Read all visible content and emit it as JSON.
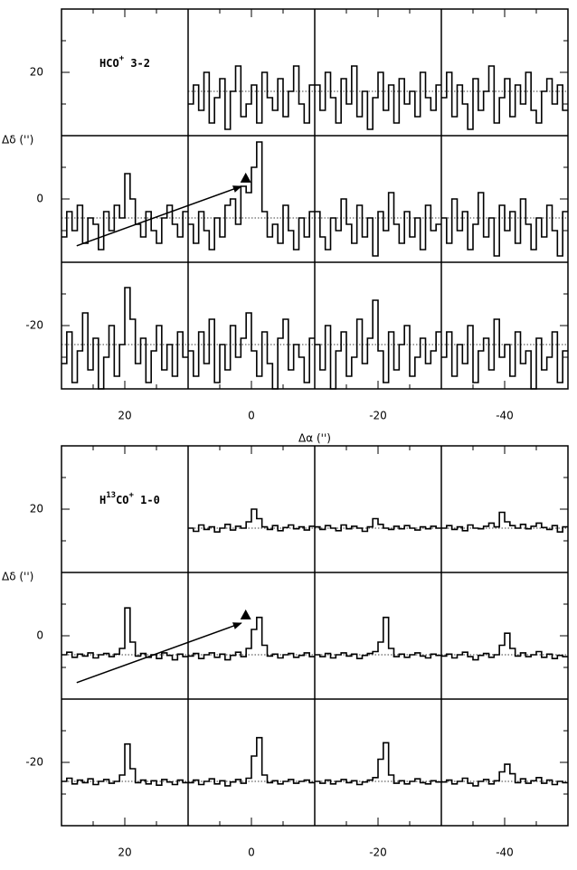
{
  "chart_data": [
    {
      "type": "spectral-map",
      "x_label": "Δα ('')",
      "y_label": "Δδ ('')",
      "label_parts": [
        {
          "text": "HCO"
        },
        {
          "text": "+",
          "sup": true
        },
        {
          "text": " 3-2"
        }
      ],
      "xlim": [
        30,
        -50
      ],
      "ylim": [
        -30,
        30
      ],
      "xticks": [
        20,
        0,
        -20,
        -40
      ],
      "yticks": [
        20,
        0,
        -20
      ],
      "xminor": [
        25,
        15,
        5,
        -5,
        -15,
        -25,
        -35,
        -45
      ],
      "yminor": [
        25,
        15,
        5,
        -5,
        -15,
        -25
      ],
      "xgrid": [
        10,
        -10,
        -30
      ],
      "ygrid": [
        10,
        -10
      ],
      "arrow": {
        "from": [
          27.6,
          -7.4
        ],
        "to": [
          1.6,
          2
        ]
      },
      "marker": [
        0.9,
        3.3
      ],
      "series": [
        {
          "position": [
            0,
            20
          ],
          "baseline": 17,
          "values": [
            15,
            18,
            14,
            20,
            12,
            16,
            19,
            11,
            17,
            21,
            13,
            15,
            18,
            12,
            20,
            16,
            14,
            19,
            13,
            17,
            21,
            15,
            12,
            18
          ]
        },
        {
          "position": [
            -20,
            20
          ],
          "baseline": 17,
          "values": [
            18,
            14,
            20,
            16,
            12,
            19,
            15,
            21,
            13,
            17,
            11,
            16,
            20,
            14,
            18,
            12,
            19,
            15,
            17,
            13,
            20,
            16,
            14,
            18
          ]
        },
        {
          "position": [
            -40,
            20
          ],
          "baseline": 17,
          "values": [
            16,
            20,
            13,
            18,
            15,
            11,
            19,
            14,
            17,
            21,
            12,
            16,
            19,
            13,
            18,
            15,
            20,
            14,
            12,
            17,
            19,
            15,
            18,
            14
          ]
        },
        {
          "position": [
            20,
            0
          ],
          "baseline": -3,
          "values": [
            -6,
            -2,
            -5,
            -1,
            -7,
            -3,
            -4,
            -8,
            -2,
            -5,
            -1,
            -3,
            4,
            0,
            -4,
            -6,
            -2,
            -5,
            -7,
            -3,
            -1,
            -4,
            -6,
            -2
          ]
        },
        {
          "position": [
            0,
            0
          ],
          "baseline": -3,
          "values": [
            -4,
            -7,
            -2,
            -5,
            -8,
            -3,
            -6,
            -1,
            0,
            -4,
            2,
            1,
            5,
            9,
            -2,
            -6,
            -4,
            -7,
            -1,
            -5,
            -8,
            -3,
            -6,
            -2
          ]
        },
        {
          "position": [
            -20,
            0
          ],
          "baseline": -3,
          "values": [
            -2,
            -6,
            -8,
            -3,
            -5,
            0,
            -4,
            -7,
            -1,
            -6,
            -3,
            -9,
            -2,
            -5,
            1,
            -4,
            -7,
            -2,
            -6,
            -3,
            -8,
            -1,
            -5,
            -4
          ]
        },
        {
          "position": [
            -40,
            0
          ],
          "baseline": -3,
          "values": [
            -3,
            -7,
            0,
            -5,
            -2,
            -8,
            -4,
            1,
            -6,
            -3,
            -9,
            -1,
            -5,
            -2,
            -7,
            0,
            -4,
            -8,
            -3,
            -6,
            -1,
            -5,
            -9,
            -2
          ]
        },
        {
          "position": [
            20,
            -20
          ],
          "baseline": -23,
          "values": [
            -26,
            -21,
            -29,
            -24,
            -18,
            -27,
            -22,
            -30,
            -25,
            -20,
            -28,
            -23,
            -14,
            -19,
            -26,
            -22,
            -29,
            -24,
            -20,
            -27,
            -23,
            -28,
            -21,
            -25
          ]
        },
        {
          "position": [
            0,
            -20
          ],
          "baseline": -23,
          "values": [
            -24,
            -28,
            -21,
            -26,
            -19,
            -29,
            -23,
            -27,
            -20,
            -25,
            -22,
            -18,
            -24,
            -28,
            -21,
            -26,
            -30,
            -22,
            -19,
            -27,
            -23,
            -25,
            -29,
            -22
          ]
        },
        {
          "position": [
            -20,
            -20
          ],
          "baseline": -23,
          "values": [
            -23,
            -27,
            -20,
            -30,
            -24,
            -21,
            -28,
            -25,
            -19,
            -26,
            -22,
            -16,
            -24,
            -29,
            -21,
            -27,
            -23,
            -20,
            -28,
            -25,
            -22,
            -26,
            -24,
            -21
          ]
        },
        {
          "position": [
            -40,
            -20
          ],
          "baseline": -23,
          "values": [
            -25,
            -21,
            -28,
            -23,
            -26,
            -20,
            -29,
            -24,
            -22,
            -27,
            -19,
            -25,
            -23,
            -28,
            -21,
            -26,
            -24,
            -30,
            -22,
            -27,
            -25,
            -21,
            -29,
            -24
          ]
        }
      ]
    },
    {
      "type": "spectral-map",
      "x_label": "Δα ('')",
      "y_label": "Δδ ('')",
      "label_parts": [
        {
          "text": "H"
        },
        {
          "text": "13",
          "sup": true
        },
        {
          "text": "CO"
        },
        {
          "text": "+",
          "sup": true
        },
        {
          "text": " 1-0"
        }
      ],
      "xlim": [
        30,
        -50
      ],
      "ylim": [
        -30,
        30
      ],
      "xticks": [
        20,
        0,
        -20,
        -40
      ],
      "yticks": [
        20,
        0,
        -20
      ],
      "xminor": [
        25,
        15,
        5,
        -5,
        -15,
        -25,
        -35,
        -45
      ],
      "yminor": [
        25,
        15,
        5,
        -5,
        -15,
        -25
      ],
      "xgrid": [
        10,
        -10,
        -30
      ],
      "ygrid": [
        10,
        -10
      ],
      "arrow": {
        "from": [
          27.6,
          -7.4
        ],
        "to": [
          1.6,
          2
        ]
      },
      "marker": [
        0.9,
        3.3
      ],
      "series": [
        {
          "position": [
            0,
            20
          ],
          "baseline": 17,
          "values": [
            17,
            16.5,
            17.5,
            16.8,
            17.2,
            16.4,
            17,
            17.6,
            16.7,
            17.3,
            17,
            18,
            20,
            18.5,
            17.2,
            16.8,
            17.4,
            16.6,
            17.1,
            17.5,
            16.9,
            17.2,
            16.7,
            17.3
          ]
        },
        {
          "position": [
            -20,
            20
          ],
          "baseline": 17,
          "values": [
            17.2,
            16.8,
            17.4,
            17,
            16.6,
            17.5,
            16.9,
            17.3,
            17,
            16.5,
            17.2,
            18.5,
            17.6,
            17,
            16.8,
            17.3,
            16.9,
            17.4,
            17,
            16.7,
            17.2,
            16.9,
            17.3,
            17
          ]
        },
        {
          "position": [
            -40,
            20
          ],
          "baseline": 17,
          "values": [
            17,
            17.4,
            16.8,
            17.2,
            16.6,
            17.5,
            17,
            16.9,
            17.3,
            17.8,
            17.2,
            19.5,
            18,
            17.4,
            17,
            17.6,
            16.9,
            17.3,
            17.8,
            17.1,
            16.8,
            17.4,
            16.4,
            17.2
          ]
        },
        {
          "position": [
            20,
            0
          ],
          "baseline": -3,
          "values": [
            -3,
            -2.6,
            -3.4,
            -2.9,
            -3.2,
            -2.7,
            -3.5,
            -3,
            -2.8,
            -3.3,
            -2.9,
            -2,
            4.4,
            -1,
            -3.2,
            -2.8,
            -3.4,
            -3,
            -3.6,
            -2.7,
            -3.1,
            -3.8,
            -2.9,
            -3.3
          ]
        },
        {
          "position": [
            0,
            0
          ],
          "baseline": -3,
          "values": [
            -3.2,
            -2.8,
            -3.6,
            -3,
            -2.7,
            -3.4,
            -2.9,
            -3.8,
            -3.1,
            -2.6,
            -3.3,
            -2,
            1,
            2.9,
            -1.5,
            -3.2,
            -2.9,
            -3.5,
            -3,
            -2.8,
            -3.4,
            -3.1,
            -2.7,
            -3.3
          ]
        },
        {
          "position": [
            -20,
            0
          ],
          "baseline": -3,
          "values": [
            -3,
            -3.3,
            -2.8,
            -3.5,
            -3,
            -2.7,
            -3.2,
            -2.9,
            -3.6,
            -3.1,
            -2.8,
            -2.5,
            -1,
            2.9,
            -2,
            -3.3,
            -2.9,
            -3.4,
            -3,
            -2.7,
            -3.2,
            -3.5,
            -2.9,
            -3.1
          ]
        },
        {
          "position": [
            -40,
            0
          ],
          "baseline": -3,
          "values": [
            -3.2,
            -2.9,
            -3.5,
            -3,
            -2.6,
            -3.3,
            -3.8,
            -3.1,
            -2.8,
            -3.4,
            -3,
            -1.5,
            0.4,
            -2,
            -3.2,
            -2.7,
            -3.3,
            -3,
            -2.5,
            -3.4,
            -2.9,
            -3.6,
            -3.1,
            -3.3
          ]
        },
        {
          "position": [
            20,
            -20
          ],
          "baseline": -23,
          "values": [
            -23,
            -22.5,
            -23.4,
            -22.8,
            -23.2,
            -22.6,
            -23.5,
            -23,
            -22.7,
            -23.3,
            -23,
            -22,
            -17.1,
            -21,
            -23.2,
            -22.8,
            -23.4,
            -22.9,
            -23.6,
            -22.7,
            -23.1,
            -23.5,
            -22.8,
            -23.2
          ]
        },
        {
          "position": [
            0,
            -20
          ],
          "baseline": -23,
          "values": [
            -23.2,
            -22.8,
            -23.5,
            -23,
            -22.6,
            -23.4,
            -22.9,
            -23.7,
            -23.1,
            -22.7,
            -23.3,
            -22.5,
            -19,
            -16.1,
            -22,
            -23.2,
            -22.9,
            -23.4,
            -23,
            -22.7,
            -23.3,
            -23,
            -22.8,
            -23.2
          ]
        },
        {
          "position": [
            -20,
            -20
          ],
          "baseline": -23,
          "values": [
            -23,
            -23.3,
            -22.8,
            -23.4,
            -23,
            -22.7,
            -23.2,
            -22.9,
            -23.5,
            -23.1,
            -22.8,
            -22.4,
            -19.5,
            -16.9,
            -22,
            -23.3,
            -22.9,
            -23.4,
            -23,
            -22.6,
            -23.2,
            -23.4,
            -22.9,
            -23.1
          ]
        },
        {
          "position": [
            -40,
            -20
          ],
          "baseline": -23,
          "values": [
            -23.1,
            -22.8,
            -23.4,
            -23,
            -22.5,
            -23.3,
            -23.7,
            -23,
            -22.7,
            -23.4,
            -22.9,
            -21.5,
            -20.3,
            -21.8,
            -23.2,
            -22.6,
            -23.3,
            -22.9,
            -22.4,
            -23.3,
            -22.8,
            -23.5,
            -23,
            -23.2
          ]
        }
      ]
    }
  ]
}
